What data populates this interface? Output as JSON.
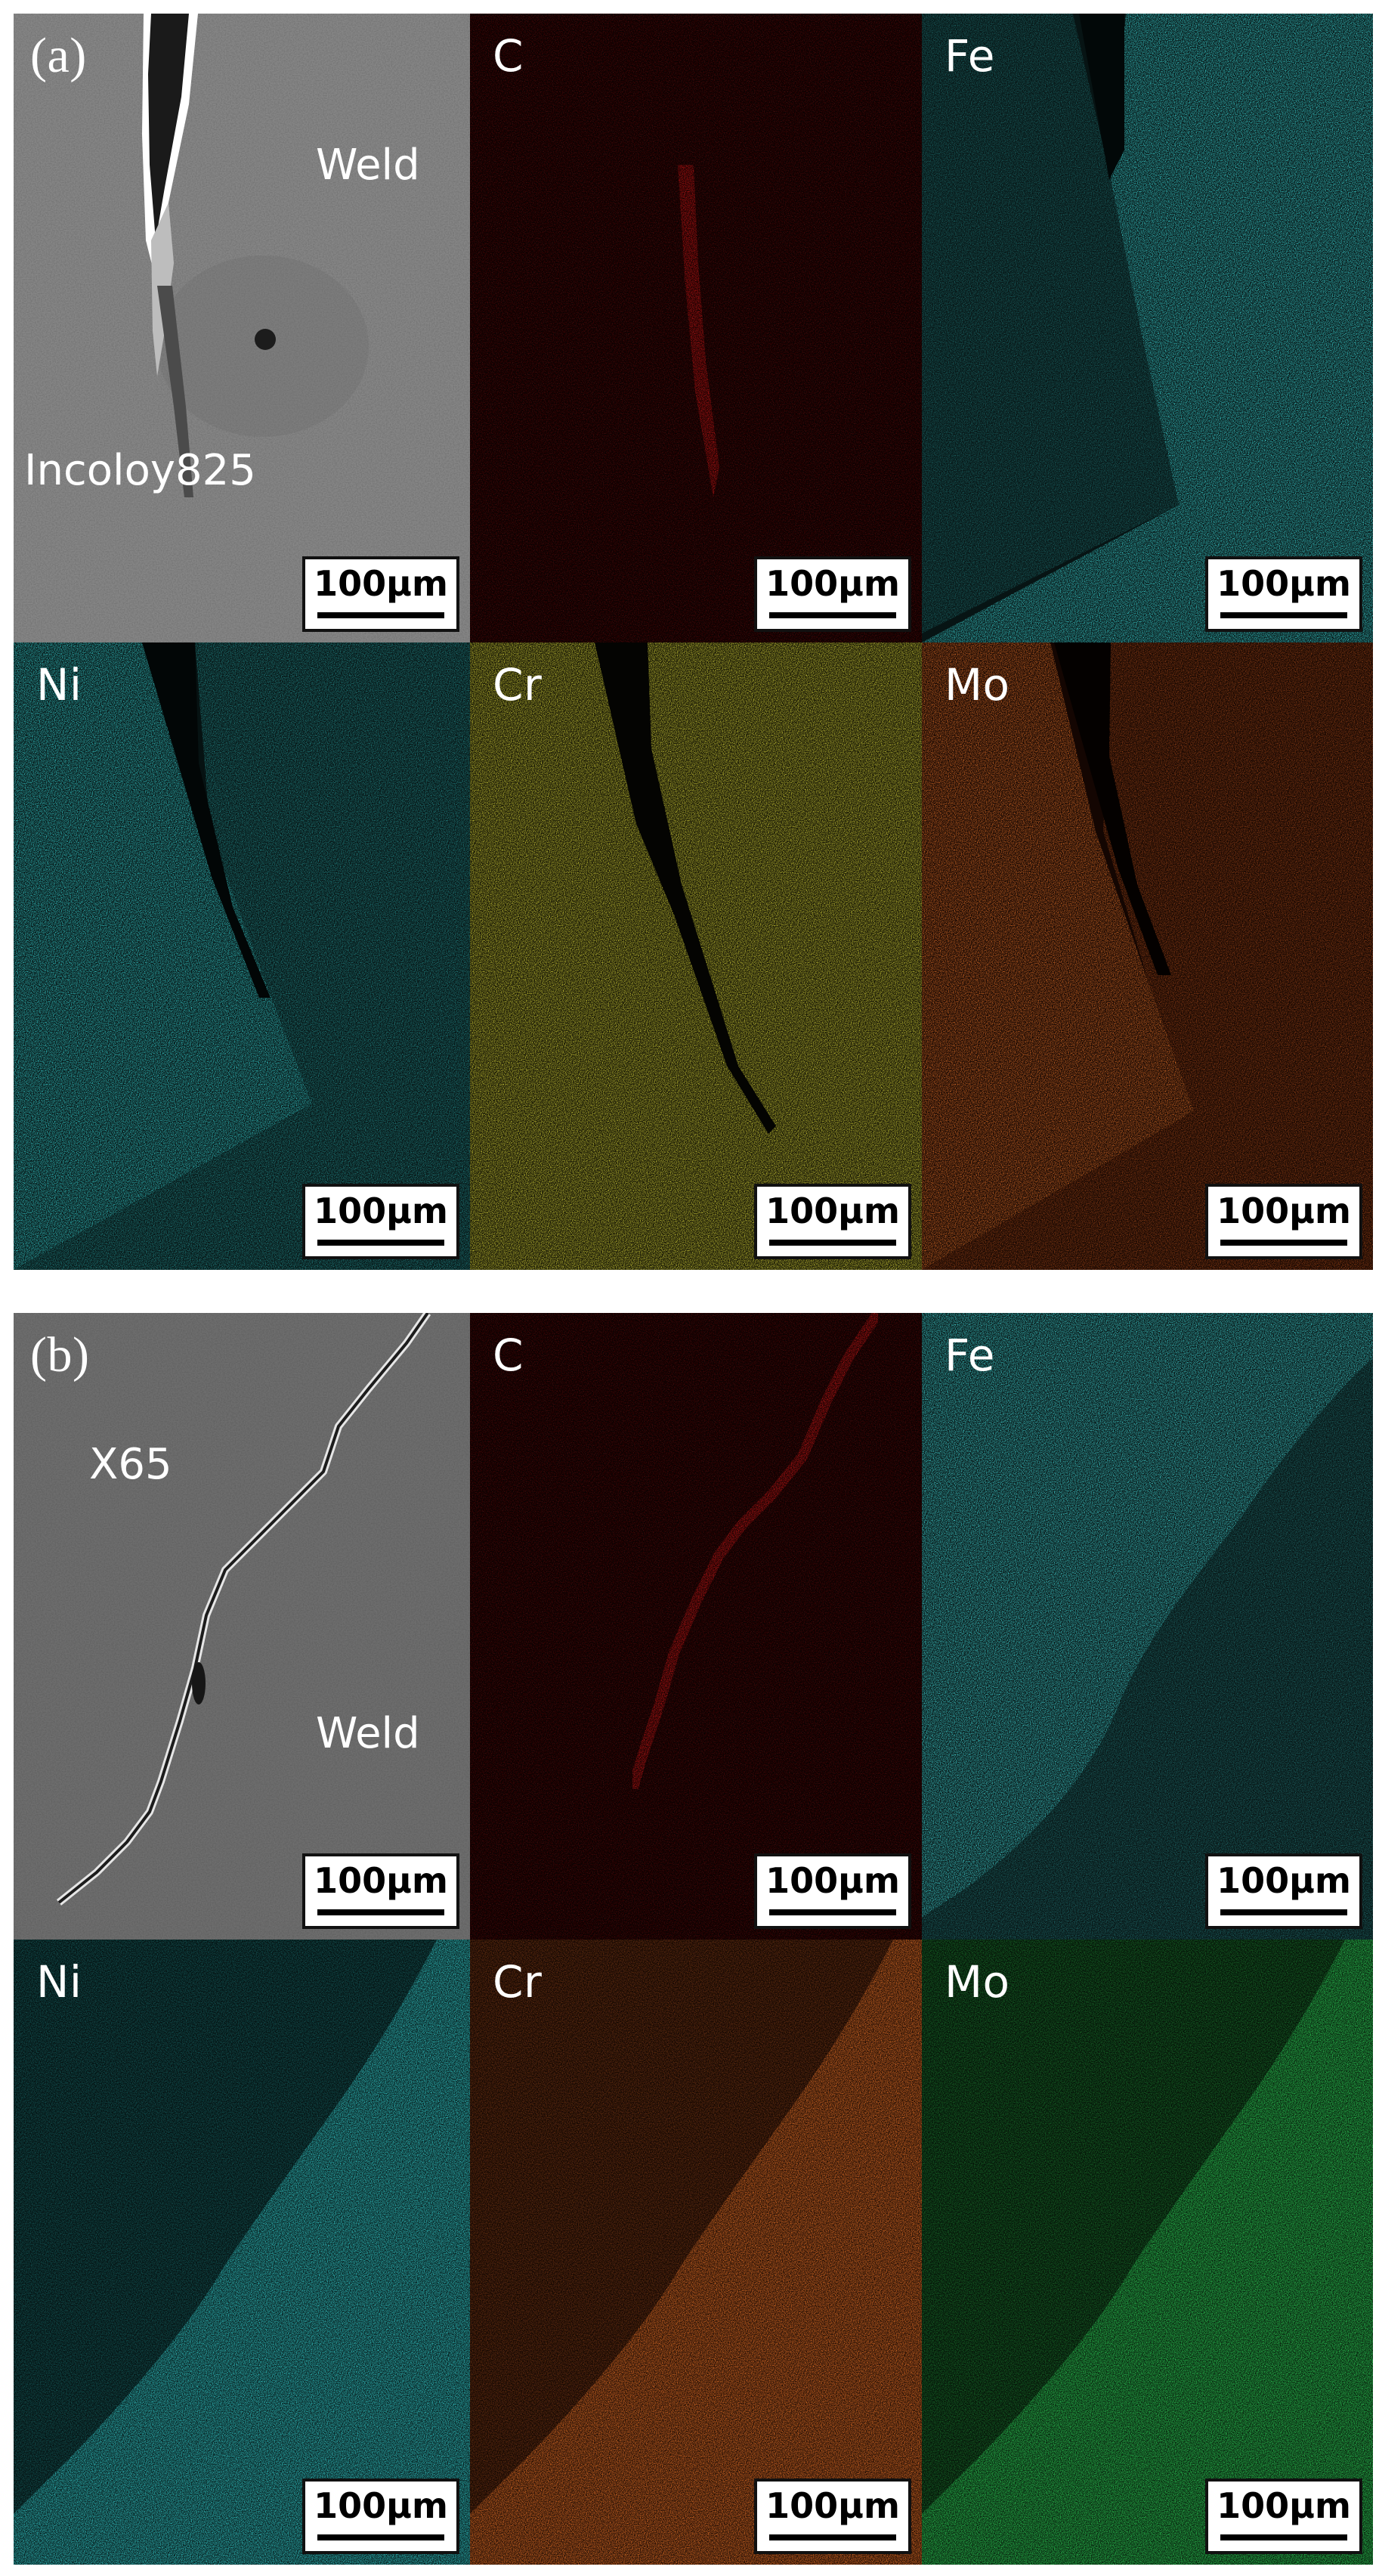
{
  "figure": {
    "panel_a": {
      "label": "(a)",
      "regions": {
        "weld": "Weld",
        "base": "Incoloy825"
      },
      "maps": {
        "c": "C",
        "fe": "Fe",
        "ni": "Ni",
        "cr": "Cr",
        "mo": "Mo"
      },
      "colors": {
        "sem": "#7b7b7b",
        "c": "#e01a1a",
        "fe": "#39d6d6",
        "ni": "#38d4d4",
        "cr": "#d8d43c",
        "mo": "#e2722a"
      }
    },
    "panel_b": {
      "label": "(b)",
      "regions": {
        "weld": "Weld",
        "base": "X65"
      },
      "maps": {
        "c": "C",
        "fe": "Fe",
        "ni": "Ni",
        "cr": "Cr",
        "mo": "Mo"
      },
      "colors": {
        "sem": "#6f6f6f",
        "c": "#e01a1a",
        "fe": "#45dcdc",
        "ni": "#38d4d4",
        "cr": "#ea7428",
        "mo": "#2ed05a"
      }
    },
    "scale_bar": "100μm"
  }
}
